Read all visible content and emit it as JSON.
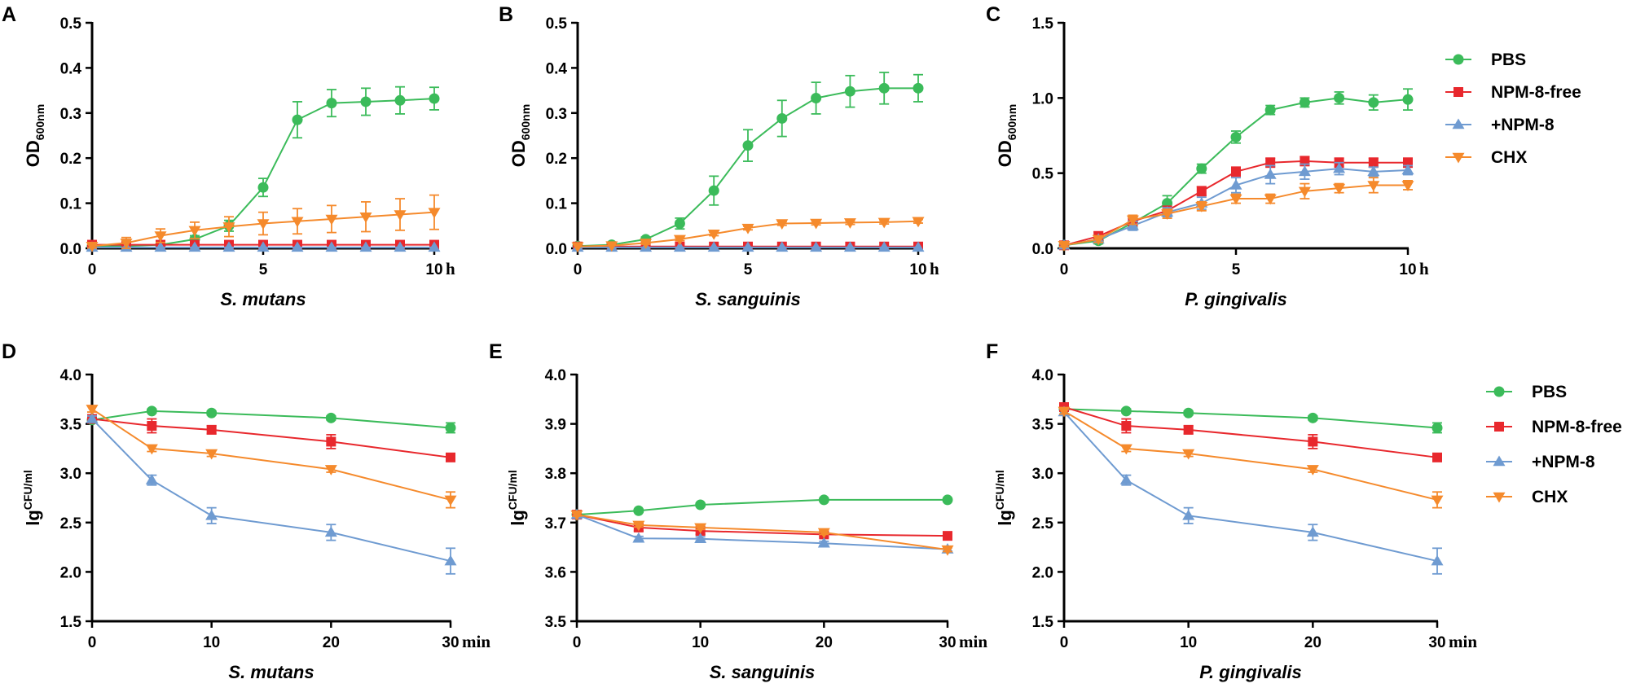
{
  "colors": {
    "PBS": "#3bbb5a",
    "NPM-8-free": "#e8282d",
    "+NPM-8": "#6f9bd1",
    "CHX": "#f58a2c"
  },
  "markers": {
    "PBS": "circle",
    "NPM-8-free": "square",
    "+NPM-8": "triangle-up",
    "CHX": "triangle-down"
  },
  "chart_data": [
    {
      "panel": "A",
      "type": "line",
      "xlabel": "S. mutans",
      "x_unit": "h",
      "ylabel_main": "OD",
      "ylabel_sub": "600nm",
      "ylabel_position": "sub",
      "xlim": [
        0,
        10
      ],
      "ylim": [
        0,
        0.5
      ],
      "xticks": [
        0,
        5,
        10
      ],
      "yticks": [
        0.0,
        0.1,
        0.2,
        0.3,
        0.4,
        0.5
      ],
      "ytick_labels": [
        "0.0",
        "0.1",
        "0.2",
        "0.3",
        "0.4",
        "0.5"
      ],
      "x": [
        0,
        1,
        2,
        3,
        4,
        5,
        6,
        7,
        8,
        9,
        10
      ],
      "series": [
        {
          "name": "PBS",
          "values": [
            0.005,
            0.005,
            0.008,
            0.02,
            0.05,
            0.135,
            0.285,
            0.322,
            0.325,
            0.328,
            0.332
          ],
          "errors": [
            0.003,
            0.003,
            0.004,
            0.008,
            0.012,
            0.02,
            0.04,
            0.03,
            0.03,
            0.03,
            0.025
          ]
        },
        {
          "name": "NPM-8-free",
          "values": [
            0.008,
            0.008,
            0.008,
            0.008,
            0.008,
            0.008,
            0.008,
            0.008,
            0.008,
            0.008,
            0.008
          ],
          "errors": [
            0.002,
            0.002,
            0.002,
            0.002,
            0.002,
            0.002,
            0.002,
            0.002,
            0.002,
            0.002,
            0.002
          ]
        },
        {
          "name": "+NPM-8",
          "values": [
            0.002,
            0.002,
            0.002,
            0.002,
            0.002,
            0.002,
            0.002,
            0.002,
            0.002,
            0.002,
            0.002
          ],
          "errors": [
            0.001,
            0.001,
            0.001,
            0.001,
            0.001,
            0.001,
            0.001,
            0.001,
            0.001,
            0.001,
            0.001
          ]
        },
        {
          "name": "CHX",
          "values": [
            0.005,
            0.012,
            0.028,
            0.04,
            0.048,
            0.055,
            0.06,
            0.065,
            0.07,
            0.075,
            0.08
          ],
          "errors": [
            0.004,
            0.012,
            0.015,
            0.018,
            0.022,
            0.025,
            0.028,
            0.03,
            0.033,
            0.035,
            0.038
          ]
        }
      ]
    },
    {
      "panel": "B",
      "type": "line",
      "xlabel": "S. sanguinis",
      "x_unit": "h",
      "ylabel_main": "OD",
      "ylabel_sub": "600nm",
      "ylabel_position": "sub",
      "xlim": [
        0,
        10
      ],
      "ylim": [
        0,
        0.5
      ],
      "xticks": [
        0,
        5,
        10
      ],
      "yticks": [
        0.0,
        0.1,
        0.2,
        0.3,
        0.4,
        0.5
      ],
      "ytick_labels": [
        "0.0",
        "0.1",
        "0.2",
        "0.3",
        "0.4",
        "0.5"
      ],
      "x": [
        0,
        1,
        2,
        3,
        4,
        5,
        6,
        7,
        8,
        9,
        10
      ],
      "series": [
        {
          "name": "PBS",
          "values": [
            0.005,
            0.008,
            0.02,
            0.055,
            0.128,
            0.228,
            0.288,
            0.333,
            0.348,
            0.355,
            0.355
          ],
          "errors": [
            0.002,
            0.003,
            0.005,
            0.012,
            0.032,
            0.035,
            0.04,
            0.035,
            0.035,
            0.035,
            0.03
          ]
        },
        {
          "name": "NPM-8-free",
          "values": [
            0.004,
            0.004,
            0.004,
            0.004,
            0.004,
            0.004,
            0.004,
            0.004,
            0.004,
            0.004,
            0.004
          ],
          "errors": [
            0.001,
            0.001,
            0.001,
            0.001,
            0.001,
            0.001,
            0.001,
            0.001,
            0.001,
            0.001,
            0.001
          ]
        },
        {
          "name": "+NPM-8",
          "values": [
            0.002,
            0.002,
            0.002,
            0.002,
            0.002,
            0.002,
            0.002,
            0.002,
            0.002,
            0.002,
            0.002
          ],
          "errors": [
            0.001,
            0.001,
            0.001,
            0.001,
            0.001,
            0.001,
            0.001,
            0.001,
            0.001,
            0.001,
            0.001
          ]
        },
        {
          "name": "CHX",
          "values": [
            0.004,
            0.006,
            0.012,
            0.02,
            0.032,
            0.045,
            0.055,
            0.056,
            0.057,
            0.058,
            0.06
          ],
          "errors": [
            0.002,
            0.002,
            0.003,
            0.003,
            0.004,
            0.004,
            0.004,
            0.004,
            0.004,
            0.004,
            0.004
          ]
        }
      ]
    },
    {
      "panel": "C",
      "type": "line",
      "xlabel": "P. gingivalis",
      "x_unit": "h",
      "ylabel_main": "OD",
      "ylabel_sub": "600nm",
      "ylabel_position": "sub",
      "xlim": [
        0,
        10
      ],
      "ylim": [
        0,
        1.5
      ],
      "xticks": [
        0,
        5,
        10
      ],
      "yticks": [
        0.0,
        0.5,
        1.0,
        1.5
      ],
      "ytick_labels": [
        "0.0",
        "0.5",
        "1.0",
        "1.5"
      ],
      "x": [
        0,
        1,
        2,
        3,
        4,
        5,
        6,
        7,
        8,
        9,
        10
      ],
      "series": [
        {
          "name": "PBS",
          "values": [
            0.02,
            0.05,
            0.17,
            0.3,
            0.53,
            0.74,
            0.92,
            0.97,
            1.0,
            0.97,
            0.99
          ],
          "errors": [
            0.01,
            0.02,
            0.03,
            0.05,
            0.03,
            0.04,
            0.03,
            0.03,
            0.04,
            0.05,
            0.07
          ]
        },
        {
          "name": "NPM-8-free",
          "values": [
            0.02,
            0.08,
            0.18,
            0.25,
            0.38,
            0.51,
            0.57,
            0.58,
            0.57,
            0.57,
            0.57
          ],
          "errors": [
            0.01,
            0.03,
            0.03,
            0.03,
            0.03,
            0.03,
            0.03,
            0.03,
            0.03,
            0.03,
            0.03
          ]
        },
        {
          "name": "+NPM-8",
          "values": [
            0.02,
            0.06,
            0.15,
            0.24,
            0.3,
            0.42,
            0.49,
            0.51,
            0.53,
            0.51,
            0.52
          ],
          "errors": [
            0.01,
            0.02,
            0.03,
            0.03,
            0.04,
            0.05,
            0.06,
            0.05,
            0.04,
            0.03,
            0.03
          ]
        },
        {
          "name": "CHX",
          "values": [
            0.02,
            0.06,
            0.19,
            0.23,
            0.28,
            0.33,
            0.33,
            0.38,
            0.4,
            0.42,
            0.42
          ],
          "errors": [
            0.01,
            0.02,
            0.03,
            0.03,
            0.03,
            0.03,
            0.03,
            0.05,
            0.03,
            0.05,
            0.03
          ]
        }
      ]
    },
    {
      "panel": "D",
      "type": "line",
      "xlabel": "S. mutans",
      "x_unit": "min",
      "ylabel_main": "lg",
      "ylabel_sub": "CFU/ml",
      "ylabel_position": "super",
      "xlim": [
        0,
        30
      ],
      "ylim": [
        1.5,
        4.0
      ],
      "xticks": [
        0,
        10,
        20,
        30
      ],
      "yticks": [
        1.5,
        2.0,
        2.5,
        3.0,
        3.5,
        4.0
      ],
      "ytick_labels": [
        "1.5",
        "2.0",
        "2.5",
        "3.0",
        "3.5",
        "4.0"
      ],
      "x": [
        0,
        5,
        10,
        20,
        30
      ],
      "series": [
        {
          "name": "PBS",
          "values": [
            3.54,
            3.63,
            3.61,
            3.56,
            3.46
          ],
          "errors": [
            0.02,
            0.02,
            0.02,
            0.02,
            0.05
          ]
        },
        {
          "name": "NPM-8-free",
          "values": [
            3.55,
            3.48,
            3.44,
            3.32,
            3.16
          ],
          "errors": [
            0.03,
            0.07,
            0.04,
            0.07,
            0.04
          ]
        },
        {
          "name": "+NPM-8",
          "values": [
            3.55,
            2.93,
            2.57,
            2.4,
            2.11
          ],
          "errors": [
            0.03,
            0.05,
            0.08,
            0.08,
            0.13
          ]
        },
        {
          "name": "CHX",
          "values": [
            3.65,
            3.25,
            3.2,
            3.04,
            2.73
          ],
          "errors": [
            0.03,
            0.03,
            0.03,
            0.03,
            0.08
          ]
        }
      ]
    },
    {
      "panel": "E",
      "type": "line",
      "xlabel": "S. sanguinis",
      "x_unit": "min",
      "ylabel_main": "lg",
      "ylabel_sub": "CFU/ml",
      "ylabel_position": "super",
      "xlim": [
        0,
        30
      ],
      "ylim": [
        3.5,
        4.0
      ],
      "xticks": [
        0,
        10,
        20,
        30
      ],
      "yticks": [
        3.5,
        3.6,
        3.7,
        3.8,
        3.9,
        4.0
      ],
      "ytick_labels": [
        "3.5",
        "3.6",
        "3.7",
        "3.8",
        "3.9",
        "4.0"
      ],
      "x": [
        0,
        5,
        10,
        20,
        30
      ],
      "series": [
        {
          "name": "PBS",
          "values": [
            3.716,
            3.724,
            3.736,
            3.746,
            3.746
          ],
          "errors": [
            0.003,
            0.003,
            0.003,
            0.003,
            0.003
          ]
        },
        {
          "name": "NPM-8-free",
          "values": [
            3.716,
            3.69,
            3.683,
            3.676,
            3.673
          ],
          "errors": [
            0.003,
            0.007,
            0.007,
            0.005,
            0.004
          ]
        },
        {
          "name": "+NPM-8",
          "values": [
            3.716,
            3.668,
            3.667,
            3.658,
            3.646
          ],
          "errors": [
            0.003,
            0.004,
            0.004,
            0.004,
            0.004
          ]
        },
        {
          "name": "CHX",
          "values": [
            3.716,
            3.695,
            3.69,
            3.68,
            3.645
          ],
          "errors": [
            0.003,
            0.004,
            0.004,
            0.004,
            0.004
          ]
        }
      ]
    },
    {
      "panel": "F",
      "type": "line",
      "xlabel": "P. gingivalis",
      "x_unit": "min",
      "ylabel_main": "lg",
      "ylabel_sub": "CFU/ml",
      "ylabel_position": "super",
      "xlim": [
        0,
        30
      ],
      "ylim": [
        1.5,
        4.0
      ],
      "xticks": [
        0,
        10,
        20,
        30
      ],
      "yticks": [
        1.5,
        2.0,
        2.5,
        3.0,
        3.5,
        4.0
      ],
      "ytick_labels": [
        "1.5",
        "2.0",
        "2.5",
        "3.0",
        "3.5",
        "4.0"
      ],
      "x": [
        0,
        5,
        10,
        20,
        30
      ],
      "series": [
        {
          "name": "PBS",
          "values": [
            3.65,
            3.63,
            3.61,
            3.56,
            3.46
          ],
          "errors": [
            0.02,
            0.02,
            0.02,
            0.02,
            0.05
          ]
        },
        {
          "name": "NPM-8-free",
          "values": [
            3.67,
            3.48,
            3.44,
            3.32,
            3.16
          ],
          "errors": [
            0.03,
            0.07,
            0.04,
            0.07,
            0.04
          ]
        },
        {
          "name": "+NPM-8",
          "values": [
            3.62,
            2.93,
            2.57,
            2.4,
            2.11
          ],
          "errors": [
            0.03,
            0.05,
            0.08,
            0.08,
            0.13
          ]
        },
        {
          "name": "CHX",
          "values": [
            3.63,
            3.25,
            3.2,
            3.04,
            2.73
          ],
          "errors": [
            0.03,
            0.03,
            0.03,
            0.03,
            0.08
          ]
        }
      ]
    }
  ],
  "legends": [
    {
      "items": [
        "PBS",
        "NPM-8-free",
        "+NPM-8",
        "CHX"
      ]
    },
    {
      "items": [
        "PBS",
        "NPM-8-free",
        "+NPM-8",
        "CHX"
      ]
    }
  ]
}
